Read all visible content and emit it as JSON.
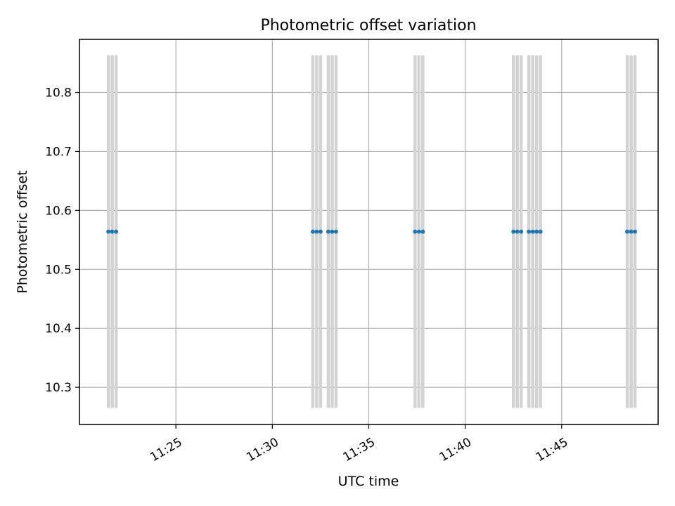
{
  "chart_data": {
    "type": "scatter",
    "title": "Photometric offset variation",
    "xlabel": "UTC time",
    "ylabel": "Photometric offset",
    "x_ticks": [
      "11:25",
      "11:30",
      "11:35",
      "11:40",
      "11:45"
    ],
    "x_range": [
      "11:20:00",
      "11:50:00"
    ],
    "y_ticks": [
      10.3,
      10.4,
      10.5,
      10.6,
      10.7,
      10.8
    ],
    "ylim": [
      10.237,
      10.89
    ],
    "grid": true,
    "series": [
      {
        "marker_color": "#1f77b4",
        "errorbar_color": "#d3d3d3",
        "points": [
          {
            "x": "11:21:30",
            "y": 10.564,
            "yerr": [
              10.265,
              10.863
            ]
          },
          {
            "x": "11:21:42",
            "y": 10.564,
            "yerr": [
              10.265,
              10.863
            ]
          },
          {
            "x": "11:21:54",
            "y": 10.564,
            "yerr": [
              10.265,
              10.863
            ]
          },
          {
            "x": "11:32:06",
            "y": 10.564,
            "yerr": [
              10.265,
              10.863
            ]
          },
          {
            "x": "11:32:18",
            "y": 10.564,
            "yerr": [
              10.265,
              10.863
            ]
          },
          {
            "x": "11:32:30",
            "y": 10.564,
            "yerr": [
              10.265,
              10.863
            ]
          },
          {
            "x": "11:32:54",
            "y": 10.564,
            "yerr": [
              10.265,
              10.863
            ]
          },
          {
            "x": "11:33:06",
            "y": 10.564,
            "yerr": [
              10.265,
              10.863
            ]
          },
          {
            "x": "11:33:18",
            "y": 10.564,
            "yerr": [
              10.265,
              10.863
            ]
          },
          {
            "x": "11:37:24",
            "y": 10.564,
            "yerr": [
              10.265,
              10.863
            ]
          },
          {
            "x": "11:37:36",
            "y": 10.564,
            "yerr": [
              10.265,
              10.863
            ]
          },
          {
            "x": "11:37:48",
            "y": 10.564,
            "yerr": [
              10.265,
              10.863
            ]
          },
          {
            "x": "11:42:30",
            "y": 10.564,
            "yerr": [
              10.265,
              10.863
            ]
          },
          {
            "x": "11:42:42",
            "y": 10.564,
            "yerr": [
              10.265,
              10.863
            ]
          },
          {
            "x": "11:42:54",
            "y": 10.564,
            "yerr": [
              10.265,
              10.863
            ]
          },
          {
            "x": "11:43:18",
            "y": 10.564,
            "yerr": [
              10.265,
              10.863
            ]
          },
          {
            "x": "11:43:30",
            "y": 10.564,
            "yerr": [
              10.265,
              10.863
            ]
          },
          {
            "x": "11:43:42",
            "y": 10.564,
            "yerr": [
              10.265,
              10.863
            ]
          },
          {
            "x": "11:43:54",
            "y": 10.564,
            "yerr": [
              10.265,
              10.863
            ]
          },
          {
            "x": "11:48:24",
            "y": 10.564,
            "yerr": [
              10.265,
              10.863
            ]
          },
          {
            "x": "11:48:36",
            "y": 10.564,
            "yerr": [
              10.265,
              10.863
            ]
          },
          {
            "x": "11:48:48",
            "y": 10.564,
            "yerr": [
              10.265,
              10.863
            ]
          }
        ]
      }
    ]
  }
}
